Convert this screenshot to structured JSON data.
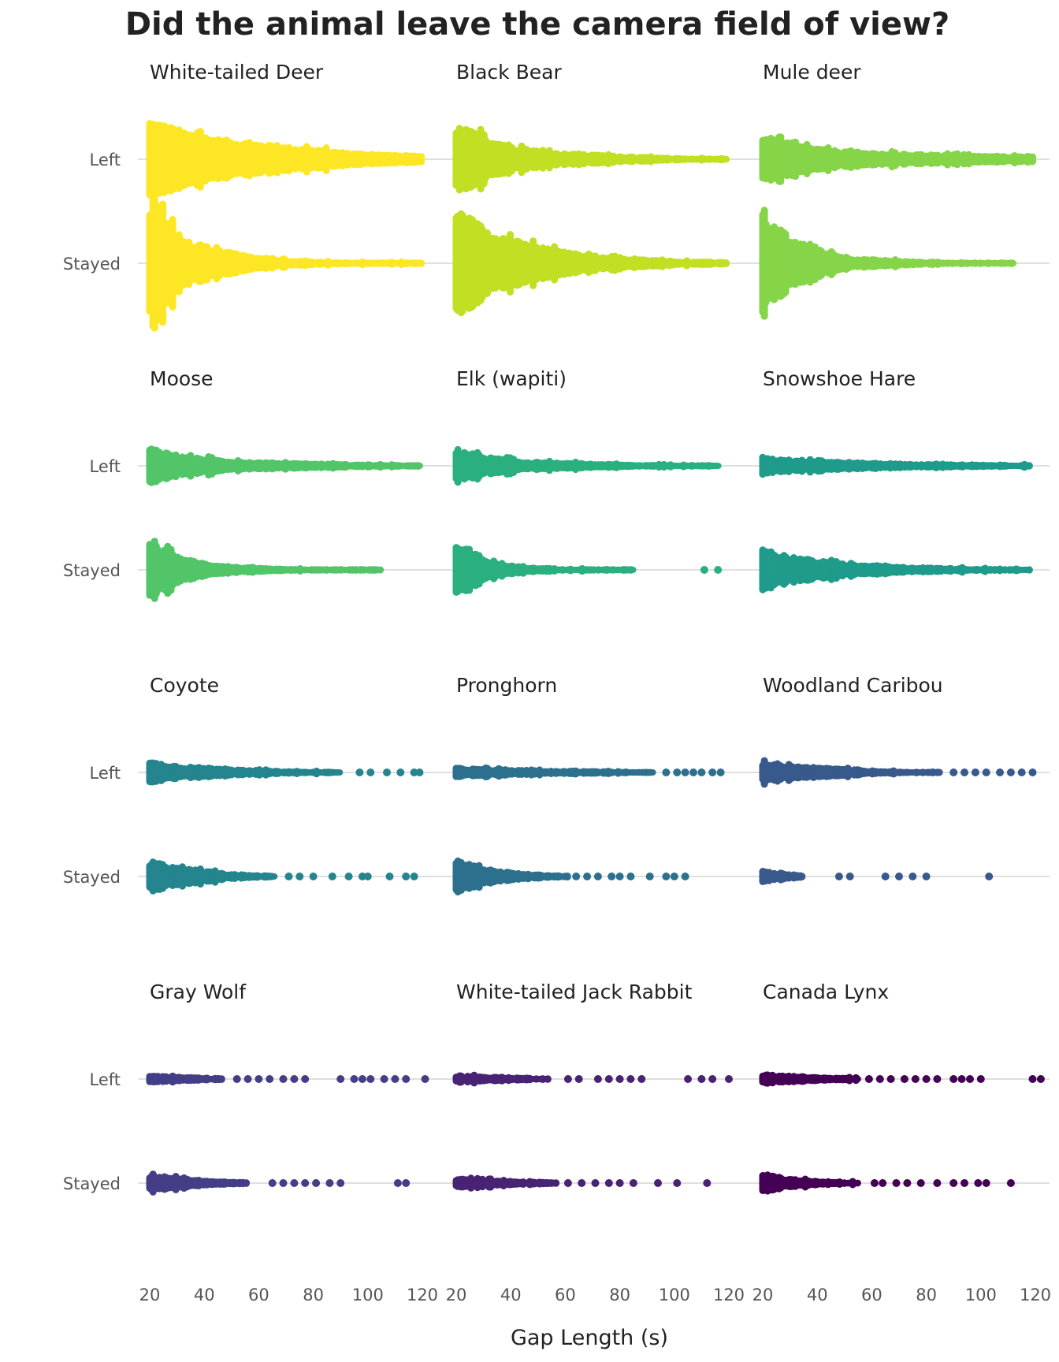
{
  "chart_data": {
    "type": "scatter",
    "subtype": "beeswarm",
    "title": "Did the animal leave the camera field of view?",
    "xlabel": "Gap Length (s)",
    "ylabel": "",
    "xlim": [
      20,
      120
    ],
    "x_ticks": [
      "20",
      "40",
      "60",
      "80",
      "100",
      "120"
    ],
    "categories": [
      "Left",
      "Stayed"
    ],
    "grid": "horizontal",
    "panels": [
      {
        "name": "White-tailed Deer",
        "color": "#FDE725",
        "left": {
          "maxes": [
            55,
            40,
            30,
            25,
            20,
            16,
            12,
            10,
            8
          ],
          "end": 120,
          "points": []
        },
        "stayed": {
          "maxes": [
            90,
            35,
            22,
            12,
            8,
            6,
            5,
            5,
            5
          ],
          "end": 120,
          "points": []
        }
      },
      {
        "name": "Black Bear",
        "color": "#C2DF23",
        "left": {
          "maxes": [
            48,
            30,
            18,
            12,
            10,
            8,
            6,
            5,
            5
          ],
          "end": 119,
          "points": []
        },
        "stayed": {
          "maxes": [
            75,
            45,
            30,
            20,
            14,
            10,
            8,
            6,
            6
          ],
          "end": 119,
          "points": []
        }
      },
      {
        "name": "Mule deer",
        "color": "#86D549",
        "left": {
          "maxes": [
            34,
            22,
            16,
            13,
            11,
            10,
            9,
            8,
            8
          ],
          "end": 119,
          "points": []
        },
        "stayed": {
          "maxes": [
            68,
            32,
            18,
            10,
            8,
            6,
            5,
            5,
            5
          ],
          "end": 112,
          "points": []
        }
      },
      {
        "name": "Moose",
        "color": "#52C569",
        "left": {
          "maxes": [
            28,
            16,
            12,
            9,
            8,
            7,
            6,
            5,
            5
          ],
          "end": 119,
          "points": []
        },
        "stayed": {
          "maxes": [
            40,
            20,
            12,
            8,
            6,
            5,
            5,
            5,
            5
          ],
          "end": 105,
          "points": []
        }
      },
      {
        "name": "Elk (wapiti)",
        "color": "#2AB07F",
        "left": {
          "maxes": [
            26,
            15,
            10,
            8,
            7,
            6,
            5,
            5,
            5
          ],
          "end": 116,
          "points": []
        },
        "stayed": {
          "maxes": [
            38,
            18,
            10,
            7,
            6,
            5,
            5,
            5
          ],
          "end": 85,
          "points": [
            111,
            116
          ]
        }
      },
      {
        "name": "Snowshoe Hare",
        "color": "#1E9B8A",
        "left": {
          "maxes": [
            14,
            12,
            10,
            8,
            7,
            6,
            6,
            5,
            5
          ],
          "end": 118,
          "points": []
        },
        "stayed": {
          "maxes": [
            30,
            20,
            14,
            10,
            8,
            7,
            6,
            5,
            5
          ],
          "end": 118,
          "points": []
        }
      },
      {
        "name": "Coyote",
        "color": "#25858E",
        "left": {
          "maxes": [
            18,
            12,
            10,
            7,
            6,
            5,
            5
          ],
          "end": 90,
          "points": [
            97,
            101,
            107,
            112,
            117,
            119
          ]
        },
        "stayed": {
          "maxes": [
            24,
            16,
            12,
            8,
            6,
            5
          ],
          "end": 66,
          "points": [
            71,
            75,
            80,
            87,
            93,
            98,
            100,
            108,
            114,
            117
          ]
        }
      },
      {
        "name": "Pronghorn",
        "color": "#2D708E",
        "left": {
          "maxes": [
            10,
            8,
            7,
            6,
            6,
            5,
            5
          ],
          "end": 92,
          "points": [
            97,
            101,
            104,
            107,
            110,
            114,
            117
          ]
        },
        "stayed": {
          "maxes": [
            26,
            18,
            12,
            9,
            7,
            6,
            5
          ],
          "end": 61,
          "points": [
            64,
            68,
            72,
            77,
            80,
            84,
            91,
            97,
            100,
            104
          ]
        }
      },
      {
        "name": "Woodland Caribou",
        "color": "#38598C",
        "left": {
          "maxes": [
            16,
            12,
            10,
            8,
            6,
            5,
            5
          ],
          "end": 85,
          "points": [
            90,
            94,
            98,
            102,
            107,
            111,
            115,
            119
          ]
        },
        "stayed": {
          "maxes": [
            11,
            9,
            7,
            5
          ],
          "end": 35,
          "points": [
            48,
            52,
            65,
            70,
            75,
            80,
            103
          ]
        }
      },
      {
        "name": "Gray Wolf",
        "color": "#433E85",
        "left": {
          "maxes": [
            9,
            7,
            6,
            5
          ],
          "end": 47,
          "points": [
            52,
            56,
            60,
            64,
            69,
            73,
            77,
            90,
            95,
            98,
            101,
            106,
            110,
            114,
            121
          ]
        },
        "stayed": {
          "maxes": [
            15,
            11,
            8,
            6,
            5
          ],
          "end": 56,
          "points": [
            65,
            69,
            73,
            77,
            81,
            86,
            90,
            111,
            114
          ]
        }
      },
      {
        "name": "White-tailed Jack Rabbit",
        "color": "#482374",
        "left": {
          "maxes": [
            9,
            7,
            6,
            5
          ],
          "end": 54,
          "points": [
            61,
            65,
            72,
            76,
            80,
            84,
            88,
            105,
            110,
            114,
            120
          ]
        },
        "stayed": {
          "maxes": [
            10,
            8,
            6,
            5
          ],
          "end": 57,
          "points": [
            61,
            66,
            71,
            76,
            80,
            85,
            94,
            101,
            112
          ]
        }
      },
      {
        "name": "Canada Lynx",
        "color": "#440154",
        "left": {
          "maxes": [
            10,
            8,
            6,
            5
          ],
          "end": 55,
          "points": [
            59,
            63,
            67,
            72,
            76,
            80,
            84,
            90,
            93,
            96,
            100,
            119,
            122
          ]
        },
        "stayed": {
          "maxes": [
            16,
            10,
            7,
            6,
            5
          ],
          "end": 55,
          "points": [
            61,
            64,
            69,
            73,
            78,
            84,
            90,
            94,
            99,
            102,
            111
          ]
        }
      }
    ]
  }
}
